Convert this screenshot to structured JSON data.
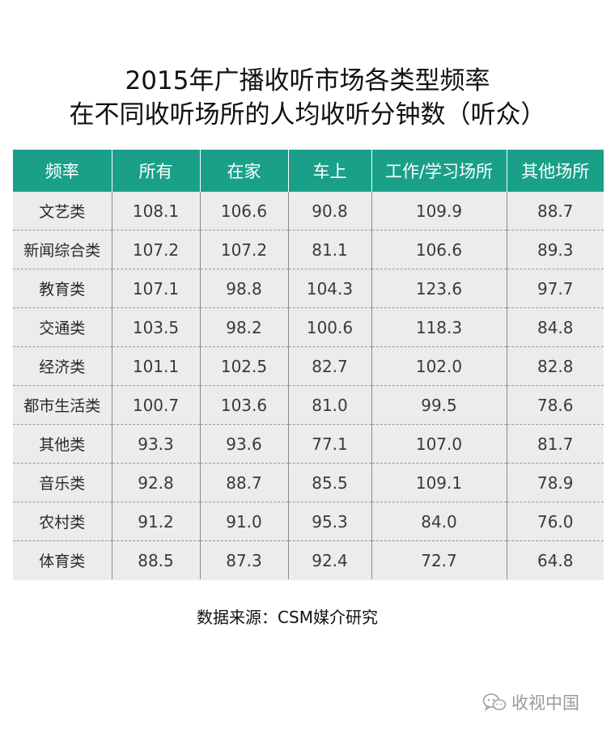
{
  "title_line1": "2015年广播收听市场各类型频率",
  "title_line2": "在不同收听场所的人均收听分钟数（听众）",
  "source": "数据来源：CSM媒介研究",
  "watermark": "收视中国",
  "header_color": "#1aa089",
  "chart_data": {
    "type": "table",
    "title": "2015年广播收听市场各类型频率在不同收听场所的人均收听分钟数（听众）",
    "columns": [
      "频率",
      "所有",
      "在家",
      "车上",
      "工作/学习场所",
      "其他场所"
    ],
    "rows": [
      {
        "category": "文艺类",
        "values": [
          "108.1",
          "106.6",
          "90.8",
          "109.9",
          "88.7"
        ]
      },
      {
        "category": "新闻综合类",
        "values": [
          "107.2",
          "107.2",
          "81.1",
          "106.6",
          "89.3"
        ]
      },
      {
        "category": "教育类",
        "values": [
          "107.1",
          "98.8",
          "104.3",
          "123.6",
          "97.7"
        ]
      },
      {
        "category": "交通类",
        "values": [
          "103.5",
          "98.2",
          "100.6",
          "118.3",
          "84.8"
        ]
      },
      {
        "category": "经济类",
        "values": [
          "101.1",
          "102.5",
          "82.7",
          "102.0",
          "82.8"
        ]
      },
      {
        "category": "都市生活类",
        "values": [
          "100.7",
          "103.6",
          "81.0",
          "99.5",
          "78.6"
        ]
      },
      {
        "category": "其他类",
        "values": [
          "93.3",
          "93.6",
          "77.1",
          "107.0",
          "81.7"
        ]
      },
      {
        "category": "音乐类",
        "values": [
          "92.8",
          "88.7",
          "85.5",
          "109.1",
          "78.9"
        ]
      },
      {
        "category": "农村类",
        "values": [
          "91.2",
          "91.0",
          "95.3",
          "84.0",
          "76.0"
        ]
      },
      {
        "category": "体育类",
        "values": [
          "88.5",
          "87.3",
          "92.4",
          "72.7",
          "64.8"
        ]
      }
    ],
    "source": "数据来源：CSM媒介研究"
  }
}
